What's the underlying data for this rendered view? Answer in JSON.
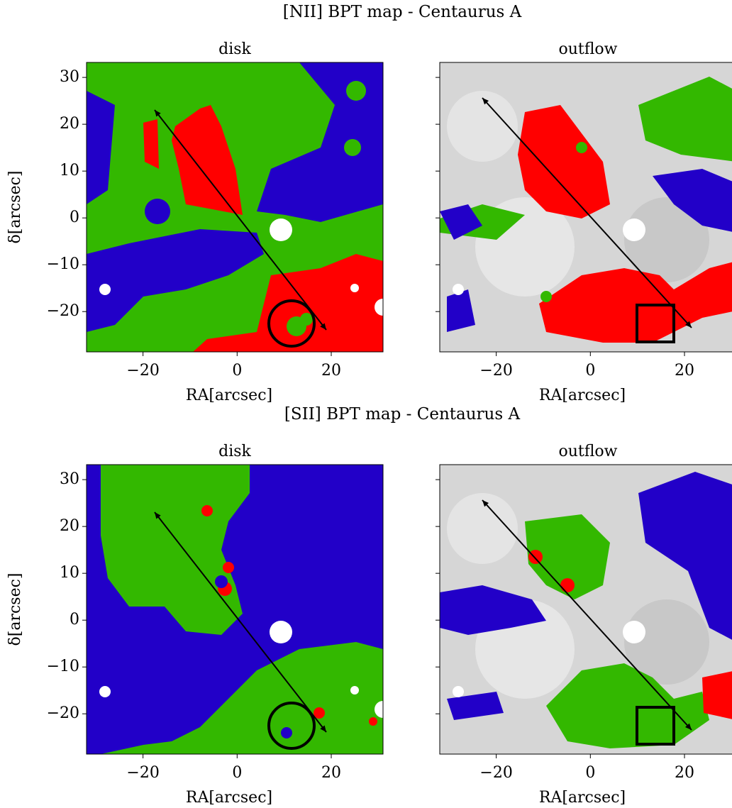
{
  "figure_titles": [
    "[NII] BPT map - Centaurus A",
    "[SII] BPT map - Centaurus A"
  ],
  "chart_data": [
    {
      "type": "map",
      "title": "disk",
      "xlabel": "RA[arcsec]",
      "ylabel": "δ[arcsec]",
      "xlim": [
        -32,
        31
      ],
      "ylim": [
        -28.6,
        33.2
      ],
      "xticks": [
        {
          "value": -20,
          "label": "−20"
        },
        0,
        20
      ],
      "yticks": [
        {
          "value": -20,
          "label": "−20"
        },
        {
          "value": -10,
          "label": "−10"
        },
        0,
        10,
        20,
        30
      ]
    },
    {
      "type": "map",
      "title": "outflow",
      "xlabel": "RA[arcsec]",
      "xlim": [
        -32,
        31
      ],
      "ylim": [
        -28.6,
        33.2
      ],
      "xticks": [
        {
          "value": -20,
          "label": "−20"
        },
        0,
        20
      ],
      "yticks": [
        -20,
        -10,
        0,
        10,
        20,
        30
      ]
    },
    {
      "type": "map",
      "title": "disk",
      "xlabel": "RA[arcsec]",
      "ylabel": "δ[arcsec]",
      "xlim": [
        -32,
        31
      ],
      "ylim": [
        -28.6,
        33.2
      ],
      "xticks": [
        {
          "value": -20,
          "label": "−20"
        },
        0,
        20
      ],
      "yticks": [
        {
          "value": -20,
          "label": "−20"
        },
        {
          "value": -10,
          "label": "−10"
        },
        0,
        10,
        20,
        30
      ]
    },
    {
      "type": "map",
      "title": "outflow",
      "xlabel": "RA[arcsec]",
      "xlim": [
        -32,
        31
      ],
      "ylim": [
        -28.6,
        33.2
      ],
      "xticks": [
        {
          "value": -20,
          "label": "−20"
        },
        0,
        20
      ],
      "yticks": [
        -20,
        -10,
        0,
        10,
        20,
        30
      ]
    }
  ]
}
